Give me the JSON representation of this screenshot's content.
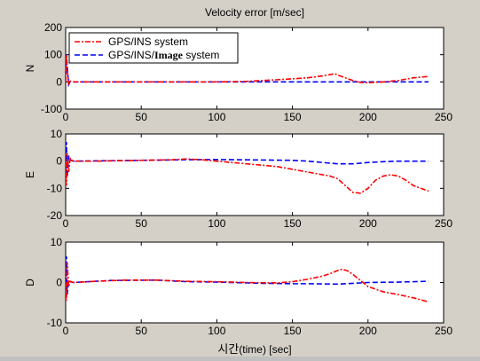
{
  "figure": {
    "background": "#d4d0c8",
    "axes_background": "#ffffff",
    "title": "Velocity error [m/sec]",
    "xlabel_prefix": "시간",
    "xlabel_suffix": "(time) [sec]"
  },
  "legend": {
    "entries": [
      {
        "series": "GPS/INS system",
        "text_parts": [
          "GPS/INS system"
        ]
      },
      {
        "series": "GPS/INS/Image system",
        "text_parts": [
          "GPS/INS/",
          "Image",
          " system"
        ]
      }
    ]
  },
  "series_styles": {
    "GPS/INS system": {
      "color": "#ff0000",
      "dash": "6,2,2,2"
    },
    "GPS/INS/Image system": {
      "color": "#0000ff",
      "dash": "6,3"
    }
  },
  "chart_data": [
    {
      "type": "line",
      "ylabel": "N",
      "xlim": [
        0,
        250
      ],
      "ylim": [
        -100,
        200
      ],
      "xticks": [
        "0",
        "50",
        "100",
        "150",
        "200",
        "250"
      ],
      "yticks": [
        "-100",
        "0",
        "100",
        "200"
      ],
      "grid": false,
      "legend": "top-left",
      "series": [
        {
          "name": "GPS/INS system",
          "x": [
            0,
            0.5,
            1,
            2,
            3,
            5,
            10,
            50,
            100,
            120,
            140,
            160,
            170,
            178,
            180,
            190,
            195,
            200,
            210,
            220,
            230,
            240
          ],
          "y": [
            0,
            100,
            50,
            -10,
            3,
            0,
            0,
            0,
            0,
            2,
            8,
            15,
            22,
            30,
            25,
            5,
            -2,
            -3,
            0,
            5,
            15,
            20
          ]
        },
        {
          "name": "GPS/INS/Image system",
          "x": [
            0,
            0.5,
            1,
            2,
            3,
            5,
            10,
            50,
            100,
            150,
            200,
            240
          ],
          "y": [
            0,
            100,
            60,
            -10,
            2,
            0,
            0,
            0,
            0,
            0,
            0,
            0
          ]
        }
      ]
    },
    {
      "type": "line",
      "ylabel": "E",
      "xlim": [
        0,
        250
      ],
      "ylim": [
        -20,
        10
      ],
      "xticks": [
        "0",
        "50",
        "100",
        "150",
        "200",
        "250"
      ],
      "yticks": [
        "-20",
        "-10",
        "0",
        "10"
      ],
      "grid": false,
      "series": [
        {
          "name": "GPS/INS system",
          "x": [
            0,
            0.5,
            1,
            2,
            3,
            5,
            20,
            50,
            70,
            80,
            90,
            100,
            120,
            140,
            160,
            175,
            180,
            185,
            190,
            195,
            200,
            205,
            210,
            215,
            220,
            225,
            230,
            240
          ],
          "y": [
            0,
            -9,
            3,
            -4,
            1,
            0,
            0,
            0.3,
            0.5,
            0.8,
            0.5,
            0,
            -1,
            -2,
            -4,
            -5.5,
            -6.5,
            -9,
            -11.5,
            -11.8,
            -10,
            -7,
            -5.5,
            -5,
            -5.5,
            -7,
            -9,
            -11
          ]
        },
        {
          "name": "GPS/INS/Image system",
          "x": [
            0,
            0.5,
            1,
            2,
            3,
            5,
            50,
            80,
            100,
            150,
            160,
            170,
            180,
            190,
            200,
            210,
            220,
            240
          ],
          "y": [
            0,
            7,
            -6,
            2,
            0.5,
            0,
            0.3,
            0.5,
            0.6,
            0.3,
            0,
            -0.5,
            -1,
            -1,
            -0.5,
            -0.2,
            0,
            0
          ]
        }
      ]
    },
    {
      "type": "line",
      "ylabel": "D",
      "xlim": [
        0,
        250
      ],
      "ylim": [
        -10,
        10
      ],
      "xticks": [
        "0",
        "50",
        "100",
        "150",
        "200",
        "250"
      ],
      "yticks": [
        "-10",
        "0",
        "10"
      ],
      "grid": false,
      "series": [
        {
          "name": "GPS/INS system",
          "x": [
            0,
            0.5,
            1,
            2,
            3,
            5,
            20,
            40,
            60,
            80,
            100,
            120,
            140,
            150,
            160,
            170,
            175,
            180,
            183,
            187,
            190,
            195,
            200,
            210,
            220,
            230,
            240
          ],
          "y": [
            0,
            -4.5,
            5,
            -1,
            0.3,
            0,
            0.3,
            0.6,
            0.6,
            0.3,
            0.2,
            0,
            -0.1,
            0.2,
            0.8,
            1.6,
            2.2,
            3,
            3.3,
            2.8,
            2,
            0.5,
            -1,
            -2.3,
            -3,
            -3.8,
            -4.8
          ]
        },
        {
          "name": "GPS/INS/Image system",
          "x": [
            0,
            0.5,
            1,
            2,
            3,
            5,
            30,
            60,
            80,
            100,
            130,
            150,
            160,
            180,
            190,
            200,
            220,
            240
          ],
          "y": [
            0,
            6.5,
            -3,
            0.5,
            0.2,
            0,
            0.5,
            0.6,
            0.2,
            0.1,
            -0.2,
            -0.3,
            -0.3,
            -0.4,
            -0.2,
            0,
            0.1,
            0.3
          ]
        }
      ]
    }
  ]
}
